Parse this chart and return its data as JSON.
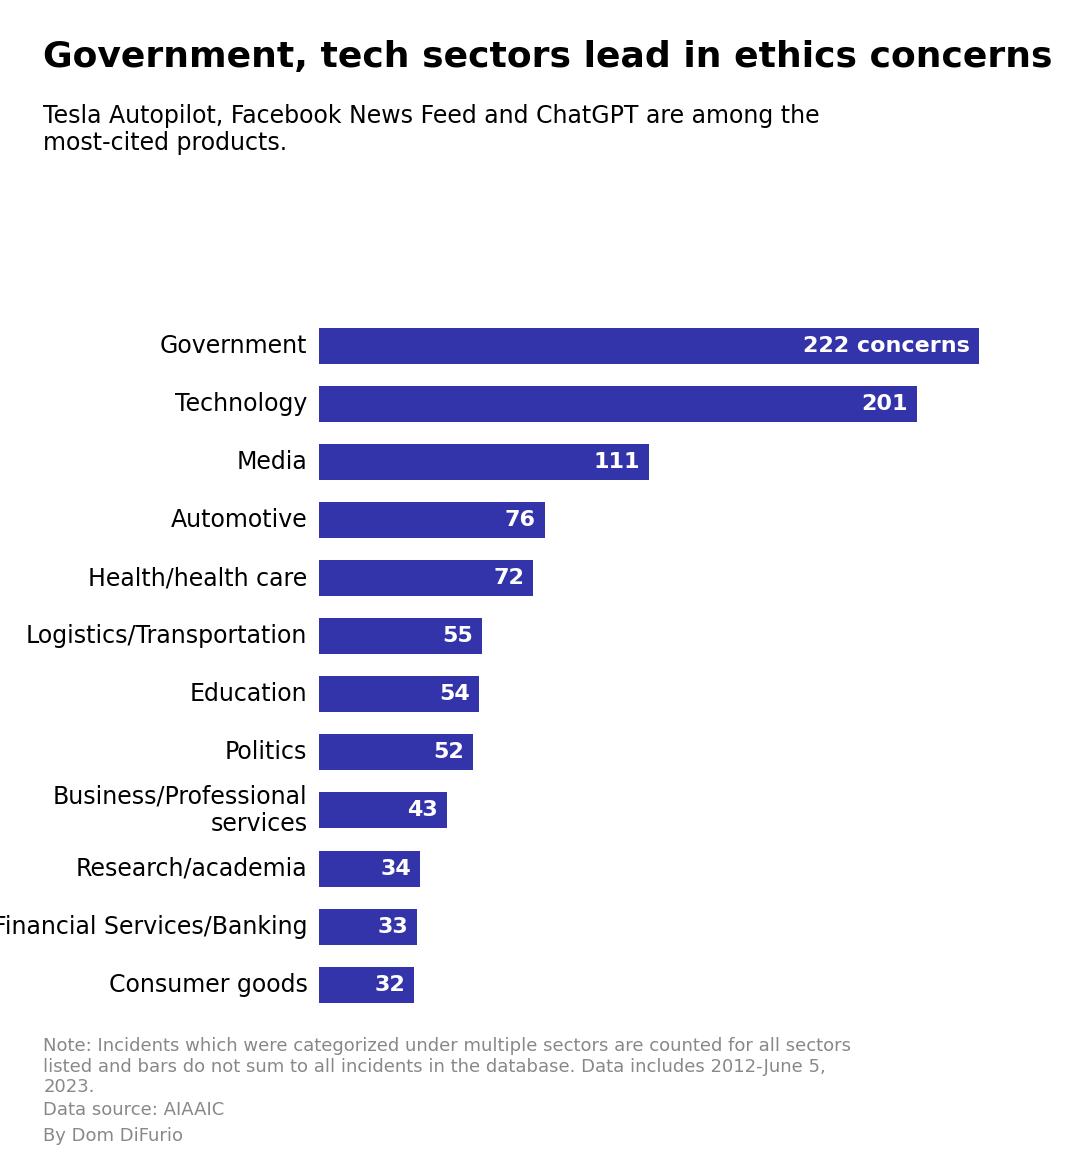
{
  "title": "Government, tech sectors lead in ethics concerns",
  "subtitle": "Tesla Autopilot, Facebook News Feed and ChatGPT are among the\nmost-cited products.",
  "categories": [
    "Government",
    "Technology",
    "Media",
    "Automotive",
    "Health/health care",
    "Logistics/Transportation",
    "Education",
    "Politics",
    "Business/Professional\nservices",
    "Research/academia",
    "Financial Services/Banking",
    "Consumer goods"
  ],
  "values": [
    222,
    201,
    111,
    76,
    72,
    55,
    54,
    52,
    43,
    34,
    33,
    32
  ],
  "bar_color": "#3333aa",
  "bar_labels": [
    "222 concerns",
    "201",
    "111",
    "76",
    "72",
    "55",
    "54",
    "52",
    "43",
    "34",
    "33",
    "32"
  ],
  "note": "Note: Incidents which were categorized under multiple sectors are counted for all sectors\nlisted and bars do not sum to all incidents in the database. Data includes 2012-June 5,\n2023.",
  "source": "Data source: AIAAIC",
  "byline": "By Dom DiFurio",
  "background_color": "#ffffff",
  "title_fontsize": 26,
  "subtitle_fontsize": 17,
  "label_fontsize": 17,
  "bar_label_fontsize": 16,
  "note_fontsize": 13,
  "text_color": "#000000",
  "note_color": "#888888",
  "xlim": [
    0,
    245
  ]
}
